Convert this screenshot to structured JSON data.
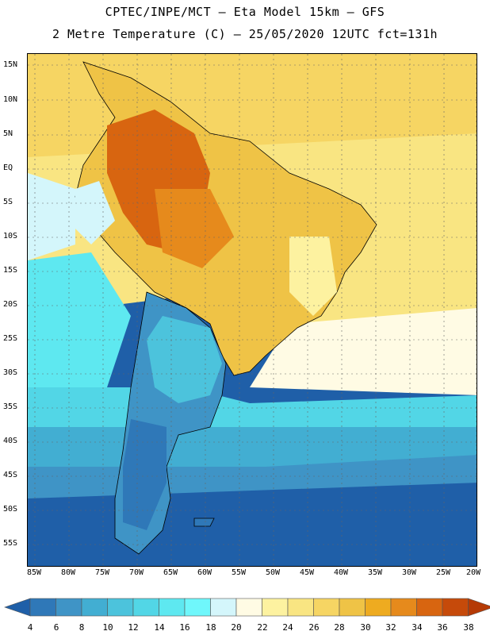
{
  "header": {
    "line1": "CPTEC/INPE/MCT –  Eta Model 15km – GFS",
    "line2": "2 Metre Temperature (C) – 25/05/2020 12UTC fct=131h"
  },
  "map": {
    "lat_labels": [
      "15N",
      "10N",
      "5N",
      "EQ",
      "5S",
      "10S",
      "15S",
      "20S",
      "25S",
      "30S",
      "35S",
      "40S",
      "45S",
      "50S",
      "55S"
    ],
    "lon_labels": [
      "85W",
      "80W",
      "75W",
      "70W",
      "65W",
      "60W",
      "55W",
      "50W",
      "45W",
      "40W",
      "35W",
      "30W",
      "25W",
      "20W"
    ],
    "grid": "dotted"
  },
  "colorbar": {
    "labels": [
      "4",
      "6",
      "8",
      "10",
      "12",
      "14",
      "16",
      "18",
      "20",
      "22",
      "24",
      "26",
      "28",
      "30",
      "32",
      "34",
      "36",
      "38"
    ],
    "colors": [
      "#1f5fa8",
      "#2f78b8",
      "#3f94c6",
      "#42aed2",
      "#4cc3dc",
      "#52d6e6",
      "#5ee8f0",
      "#6ff7fb",
      "#d4f6fb",
      "#fffbe4",
      "#fdf2a0",
      "#f9e582",
      "#f6d563",
      "#efc346",
      "#eeab20",
      "#e68a1c",
      "#d86510",
      "#c64a0a",
      "#b53a05"
    ]
  }
}
